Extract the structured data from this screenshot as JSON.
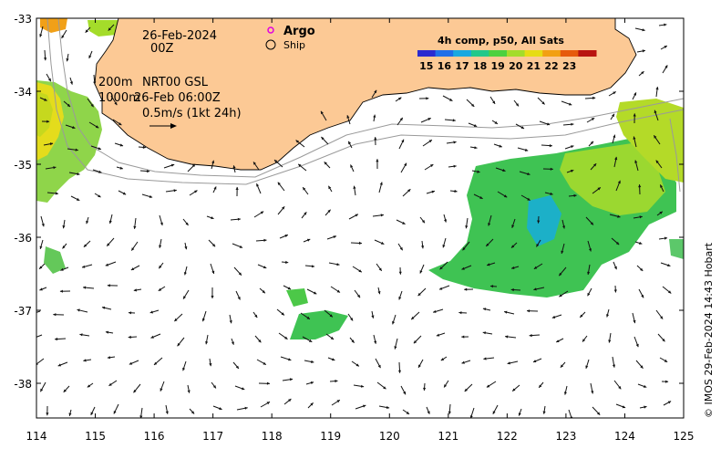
{
  "map": {
    "date_line1": "26-Feb-2024",
    "date_line2": "00Z",
    "depth_line1": "200m",
    "depth_line2": "1000m",
    "model_line1": "NRT00 GSL",
    "model_line2": "26-Feb 06:00Z",
    "scale_label": "0.5m/s (1kt 24h)",
    "legend_argo": "Argo",
    "legend_ship": "Ship",
    "credit": "© IMOS 29-Feb-2024 14:43 Hobart",
    "colorbar": {
      "title": "4h comp, p50, All Sats",
      "ticks": [
        "15",
        "16",
        "17",
        "18",
        "19",
        "20",
        "21",
        "22",
        "23"
      ],
      "colors": [
        "#2a2ad0",
        "#1f6fe8",
        "#19a8e0",
        "#22c88a",
        "#4cd13f",
        "#a4dc2a",
        "#e6dc14",
        "#f2a012",
        "#e65a0c",
        "#b81410"
      ]
    },
    "x_ticks": [
      "114",
      "115",
      "116",
      "117",
      "118",
      "119",
      "120",
      "121",
      "122",
      "123",
      "124",
      "125"
    ],
    "y_ticks": [
      "-33",
      "-34",
      "-35",
      "-36",
      "-37",
      "-38"
    ],
    "colors": {
      "land": "#fcc995",
      "frame": "#000000",
      "bathy": "#9a9a9a",
      "arrow": "#111111"
    }
  }
}
